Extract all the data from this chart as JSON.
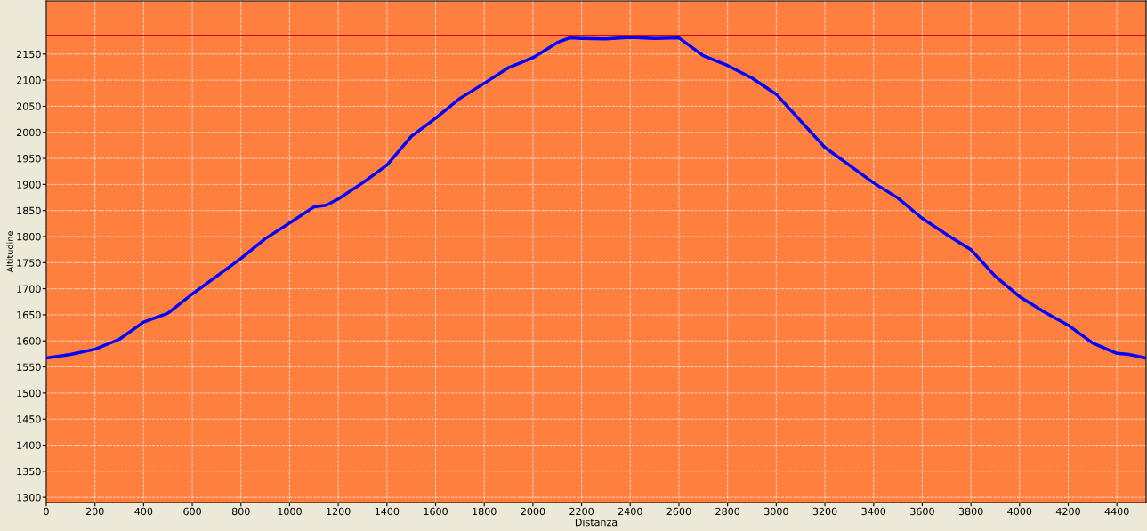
{
  "chart_data": {
    "type": "line",
    "xlabel": "Distanza",
    "ylabel": "Altitudine",
    "x": [
      0,
      100,
      200,
      300,
      400,
      500,
      600,
      700,
      800,
      900,
      1000,
      1100,
      1150,
      1200,
      1300,
      1400,
      1500,
      1600,
      1700,
      1800,
      1900,
      2000,
      2100,
      2150,
      2200,
      2300,
      2400,
      2500,
      2600,
      2700,
      2800,
      2900,
      3000,
      3100,
      3200,
      3300,
      3400,
      3500,
      3600,
      3700,
      3800,
      3900,
      4000,
      4100,
      4200,
      4300,
      4400,
      4450,
      4520
    ],
    "series": [
      {
        "color": "#0000ff",
        "values": [
          1567,
          1574,
          1584,
          1603,
          1636,
          1653,
          1690,
          1724,
          1758,
          1796,
          1826,
          1857,
          1860,
          1872,
          1903,
          1937,
          1992,
          2027,
          2065,
          2094,
          2124,
          2143,
          2172,
          2181,
          2180,
          2179,
          2182,
          2180,
          2181,
          2147,
          2128,
          2104,
          2073,
          2022,
          1971,
          1937,
          1903,
          1874,
          1835,
          1804,
          1775,
          1724,
          1685,
          1656,
          1630,
          1596,
          1576,
          1574,
          1567
        ]
      }
    ],
    "xlim": [
      0,
      4520
    ],
    "ylim": [
      1290,
      2252
    ],
    "xticks": [
      0,
      200,
      400,
      600,
      800,
      1000,
      1200,
      1400,
      1600,
      1800,
      2000,
      2200,
      2400,
      2600,
      2800,
      3000,
      3200,
      3400,
      3600,
      3800,
      4000,
      4200,
      4400
    ],
    "yticks": [
      1300,
      1350,
      1400,
      1450,
      1500,
      1550,
      1600,
      1650,
      1700,
      1750,
      1800,
      1850,
      1900,
      1950,
      2000,
      2050,
      2100,
      2150
    ],
    "ref_lines": [
      {
        "axis": "y",
        "value": 2186,
        "color": "#e00000",
        "line_style": "solid"
      }
    ],
    "grid": true,
    "marker": "none",
    "line_style": "solid"
  }
}
